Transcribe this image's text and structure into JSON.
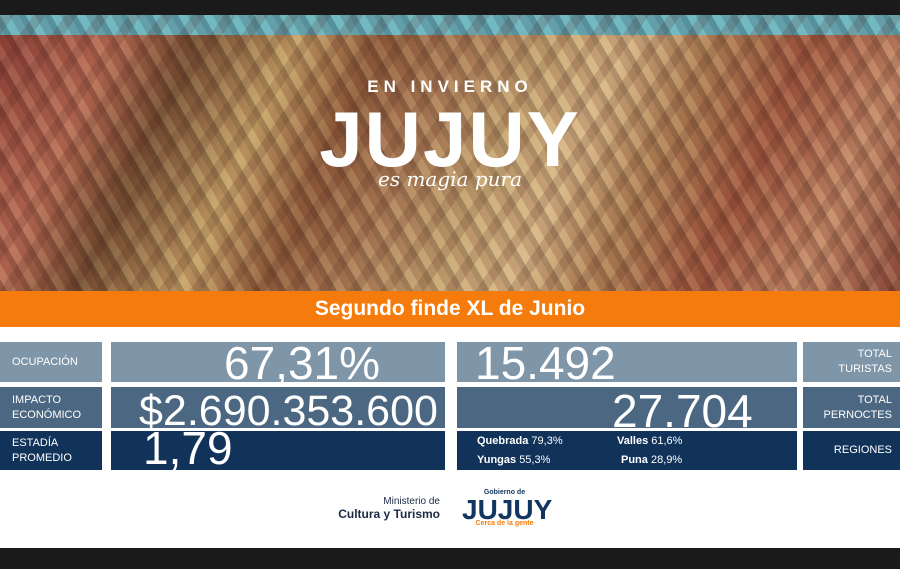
{
  "hero": {
    "subtitle": "EN INVIERNO",
    "title": "JUJUY",
    "tagline": "es magia pura"
  },
  "banner": "Segundo finde XL de Junio",
  "stats": {
    "ocupacion": {
      "label": "OCUPACIÓN",
      "value": "67,31%"
    },
    "impacto": {
      "label1": "IMPACTO",
      "label2": "ECONÓMICO",
      "value": "$2.690.353.600"
    },
    "estadia": {
      "label1": "ESTADÍA",
      "label2": "PROMEDIO",
      "value": "1,79"
    },
    "turistas": {
      "label1": "TOTAL",
      "label2": "TURISTAS",
      "value": "15.492"
    },
    "pernoctes": {
      "label1": "TOTAL",
      "label2": "PERNOCTES",
      "value": "27.704"
    },
    "regiones": {
      "label": "REGIONES",
      "items": [
        {
          "name": "Quebrada",
          "value": "79,3%"
        },
        {
          "name": "Valles",
          "value": "61,6%"
        },
        {
          "name": "Yungas",
          "value": "55,3%"
        },
        {
          "name": "Puna",
          "value": "28,9%"
        }
      ]
    }
  },
  "footer": {
    "ministry1": "Ministerio de",
    "ministry2": "Cultura y Turismo",
    "gov_top": "Gobierno de",
    "gov_name": "JUJUY",
    "gov_tag": "Cerca de la gente"
  },
  "colors": {
    "orange": "#f57c0c",
    "light": "#7f95a8",
    "mid": "#4c6781",
    "dark": "#11335a"
  }
}
